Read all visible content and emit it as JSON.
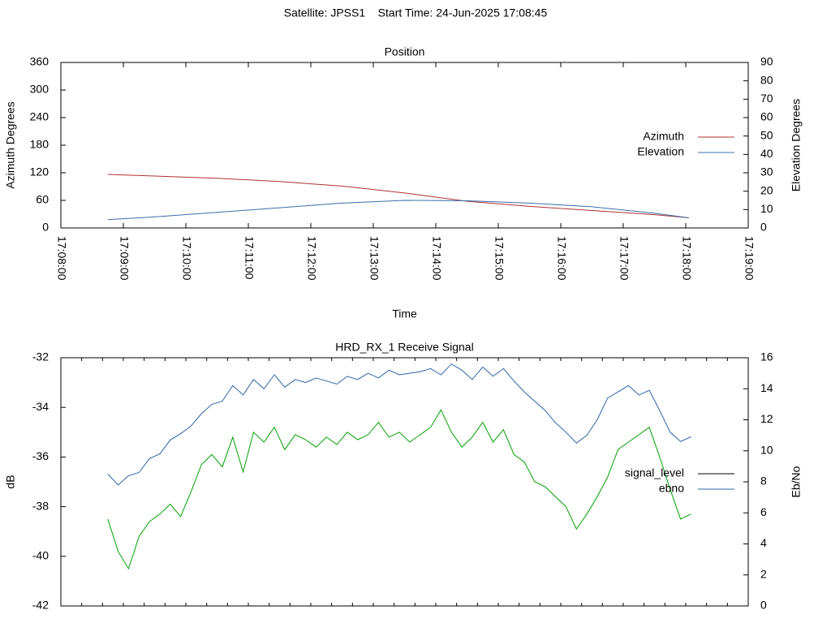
{
  "title": "Satellite: JPSS1    Start Time: 24-Jun-2025 17:08:45",
  "chart_data": [
    {
      "type": "line",
      "title": "Position",
      "xlabel": "Time",
      "ylabel": "Azimuth Degrees",
      "y2label": "Elevation Degrees",
      "xlim": [
        "17:08:00",
        "17:19:00"
      ],
      "xticks": [
        "17:08:00",
        "17:09:00",
        "17:10:00",
        "17:11:00",
        "17:12:00",
        "17:13:00",
        "17:14:00",
        "17:15:00",
        "17:16:00",
        "17:17:00",
        "17:18:00",
        "17:19:00"
      ],
      "xtick_labels": true,
      "ylim": [
        0,
        360
      ],
      "yticks": [
        0,
        60,
        120,
        180,
        240,
        300,
        360
      ],
      "y2lim": [
        0,
        90
      ],
      "y2ticks": [
        0,
        10,
        20,
        30,
        40,
        50,
        60,
        70,
        80,
        90
      ],
      "legend": "right",
      "x": [
        "17:08:45",
        "17:09:30",
        "17:10:30",
        "17:11:30",
        "17:12:30",
        "17:13:30",
        "17:14:30",
        "17:15:30",
        "17:16:30",
        "17:17:30",
        "17:18:03"
      ],
      "series": [
        {
          "name": "Azimuth",
          "color": "#b03030",
          "values": [
            116.5,
            113,
            108,
            101,
            91,
            76,
            58,
            47,
            38,
            29,
            22
          ]
        },
        {
          "name": "Elevation",
          "color": "#3b6fa8",
          "axis": "y2",
          "values": [
            4.5,
            6,
            8.5,
            11,
            13.5,
            15,
            14.8,
            13.5,
            11.5,
            8,
            5.5
          ]
        }
      ]
    },
    {
      "type": "line",
      "title": "HRD_RX_1 Receive Signal",
      "ylabel": "dB",
      "y2label": "Eb/No",
      "xlim": [
        "17:08:00",
        "17:19:00"
      ],
      "xticks": [
        "17:08:00",
        "17:08:20",
        "17:08:40",
        "17:09:00",
        "17:09:20",
        "17:09:40",
        "17:10:00",
        "17:10:20",
        "17:10:40",
        "17:11:00",
        "17:11:20",
        "17:11:40",
        "17:12:00",
        "17:12:20",
        "17:12:40",
        "17:13:00",
        "17:13:20",
        "17:13:40",
        "17:14:00",
        "17:14:20",
        "17:14:40",
        "17:15:00",
        "17:15:20",
        "17:15:40",
        "17:16:00",
        "17:16:20",
        "17:16:40",
        "17:17:00",
        "17:17:20",
        "17:17:40",
        "17:18:00",
        "17:18:20",
        "17:18:40",
        "17:19:00"
      ],
      "xtick_labels": false,
      "ylim": [
        -42,
        -32
      ],
      "yticks": [
        -42,
        -40,
        -38,
        -36,
        -34,
        -32
      ],
      "y2lim": [
        0,
        16
      ],
      "y2ticks": [
        0,
        2,
        4,
        6,
        8,
        10,
        12,
        14,
        16
      ],
      "legend": "right",
      "x": [
        "17:08:45",
        "17:08:55",
        "17:09:05",
        "17:09:15",
        "17:09:25",
        "17:09:35",
        "17:09:45",
        "17:09:55",
        "17:10:05",
        "17:10:15",
        "17:10:25",
        "17:10:35",
        "17:10:45",
        "17:10:55",
        "17:11:05",
        "17:11:15",
        "17:11:25",
        "17:11:35",
        "17:11:45",
        "17:11:55",
        "17:12:05",
        "17:12:15",
        "17:12:25",
        "17:12:35",
        "17:12:45",
        "17:12:55",
        "17:13:05",
        "17:13:15",
        "17:13:25",
        "17:13:35",
        "17:13:45",
        "17:13:55",
        "17:14:05",
        "17:14:15",
        "17:14:25",
        "17:14:35",
        "17:14:45",
        "17:14:55",
        "17:15:05",
        "17:15:15",
        "17:15:25",
        "17:15:35",
        "17:15:45",
        "17:15:55",
        "17:16:05",
        "17:16:15",
        "17:16:25",
        "17:16:35",
        "17:16:45",
        "17:16:55",
        "17:17:05",
        "17:17:15",
        "17:17:25",
        "17:17:35",
        "17:17:45",
        "17:17:55",
        "17:18:05"
      ],
      "series": [
        {
          "name": "signal_level",
          "color": "#00a000",
          "legend_color": "#000000",
          "values": [
            -38.5,
            -39.8,
            -40.5,
            -39.2,
            -38.6,
            -38.3,
            -37.9,
            -38.4,
            -37.4,
            -36.3,
            -35.9,
            -36.4,
            -35.2,
            -36.6,
            -35.0,
            -35.4,
            -34.8,
            -35.7,
            -35.1,
            -35.3,
            -35.6,
            -35.2,
            -35.5,
            -35.0,
            -35.3,
            -35.1,
            -34.6,
            -35.2,
            -35.0,
            -35.4,
            -35.1,
            -34.8,
            -34.1,
            -35.0,
            -35.6,
            -35.2,
            -34.6,
            -35.4,
            -34.9,
            -35.9,
            -36.2,
            -37.0,
            -37.2,
            -37.6,
            -38.0,
            -38.9,
            -38.3,
            -37.6,
            -36.8,
            -35.7,
            -35.4,
            -35.1,
            -34.8,
            -36.0,
            -37.3,
            -38.5,
            -38.3
          ]
        },
        {
          "name": "ebno",
          "color": "#2e64a8",
          "axis": "y2",
          "values": [
            8.5,
            7.8,
            8.4,
            8.6,
            9.5,
            9.8,
            10.7,
            11.1,
            11.6,
            12.4,
            13.0,
            13.2,
            14.2,
            13.6,
            14.6,
            14.0,
            14.9,
            14.1,
            14.6,
            14.4,
            14.7,
            14.5,
            14.3,
            14.8,
            14.6,
            15.0,
            14.7,
            15.2,
            14.9,
            15.0,
            15.1,
            15.3,
            14.9,
            15.6,
            15.2,
            14.6,
            15.4,
            14.8,
            15.3,
            14.5,
            13.8,
            13.2,
            12.6,
            11.8,
            11.2,
            10.5,
            11.0,
            12.0,
            13.4,
            13.8,
            14.2,
            13.6,
            13.9,
            12.6,
            11.2,
            10.6,
            10.9
          ]
        }
      ]
    }
  ]
}
